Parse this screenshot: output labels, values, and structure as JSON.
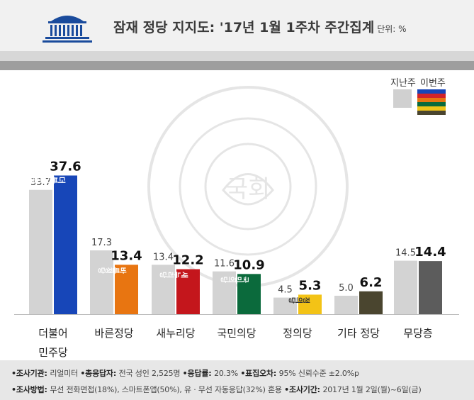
{
  "title": "잠재 정당 지지도: '17년 1월 1주차 주간집계",
  "unit": "단위: %",
  "legend": {
    "prev": "지난주",
    "cur": "이번주",
    "cur_stripe_colors": [
      "#1746b8",
      "#d2232a",
      "#e87511",
      "#0b6a3c",
      "#f0c419",
      "#4a452f"
    ]
  },
  "chart_data": {
    "type": "bar",
    "categories": [
      "더불어\n민주당",
      "바른정당",
      "새누리당",
      "국민의당",
      "정의당",
      "기타 정당",
      "무당층"
    ],
    "series": [
      {
        "name": "지난주",
        "values": [
          33.7,
          17.3,
          13.4,
          11.6,
          4.5,
          5.0,
          14.5
        ]
      },
      {
        "name": "이번주",
        "values": [
          37.6,
          13.4,
          12.2,
          10.9,
          5.3,
          6.2,
          14.4
        ]
      }
    ],
    "ylim": [
      0,
      40
    ],
    "colors": {
      "prev": "#d3d3d3",
      "cur": [
        "#1746b8",
        "#e87511",
        "#c4161c",
        "#0b6a3c",
        "#f3c316",
        "#4a452f",
        "#5c5c5c"
      ]
    },
    "bar_logos": [
      "더불어민주당",
      "바른정당",
      "새누리당",
      "국민의당",
      "정의당",
      "",
      ""
    ]
  },
  "footer": {
    "line1": [
      {
        "label": "•조사기관: ",
        "value": "리얼미터 "
      },
      {
        "label": "•총응답자: ",
        "value": "전국 성인 2,525명 "
      },
      {
        "label": "•응답률: ",
        "value": "20.3% "
      },
      {
        "label": "•표집오차: ",
        "value": "95% 신뢰수준 ±2.0%p"
      }
    ],
    "line2": [
      {
        "label": "•조사방법: ",
        "value": "무선 전화면접(18%), 스마트폰앱(50%), 유 · 무선 자동응답(32%) 혼용 "
      },
      {
        "label": "•조사기간: ",
        "value": "2017년 1월 2일(월)~6일(금)"
      }
    ]
  }
}
